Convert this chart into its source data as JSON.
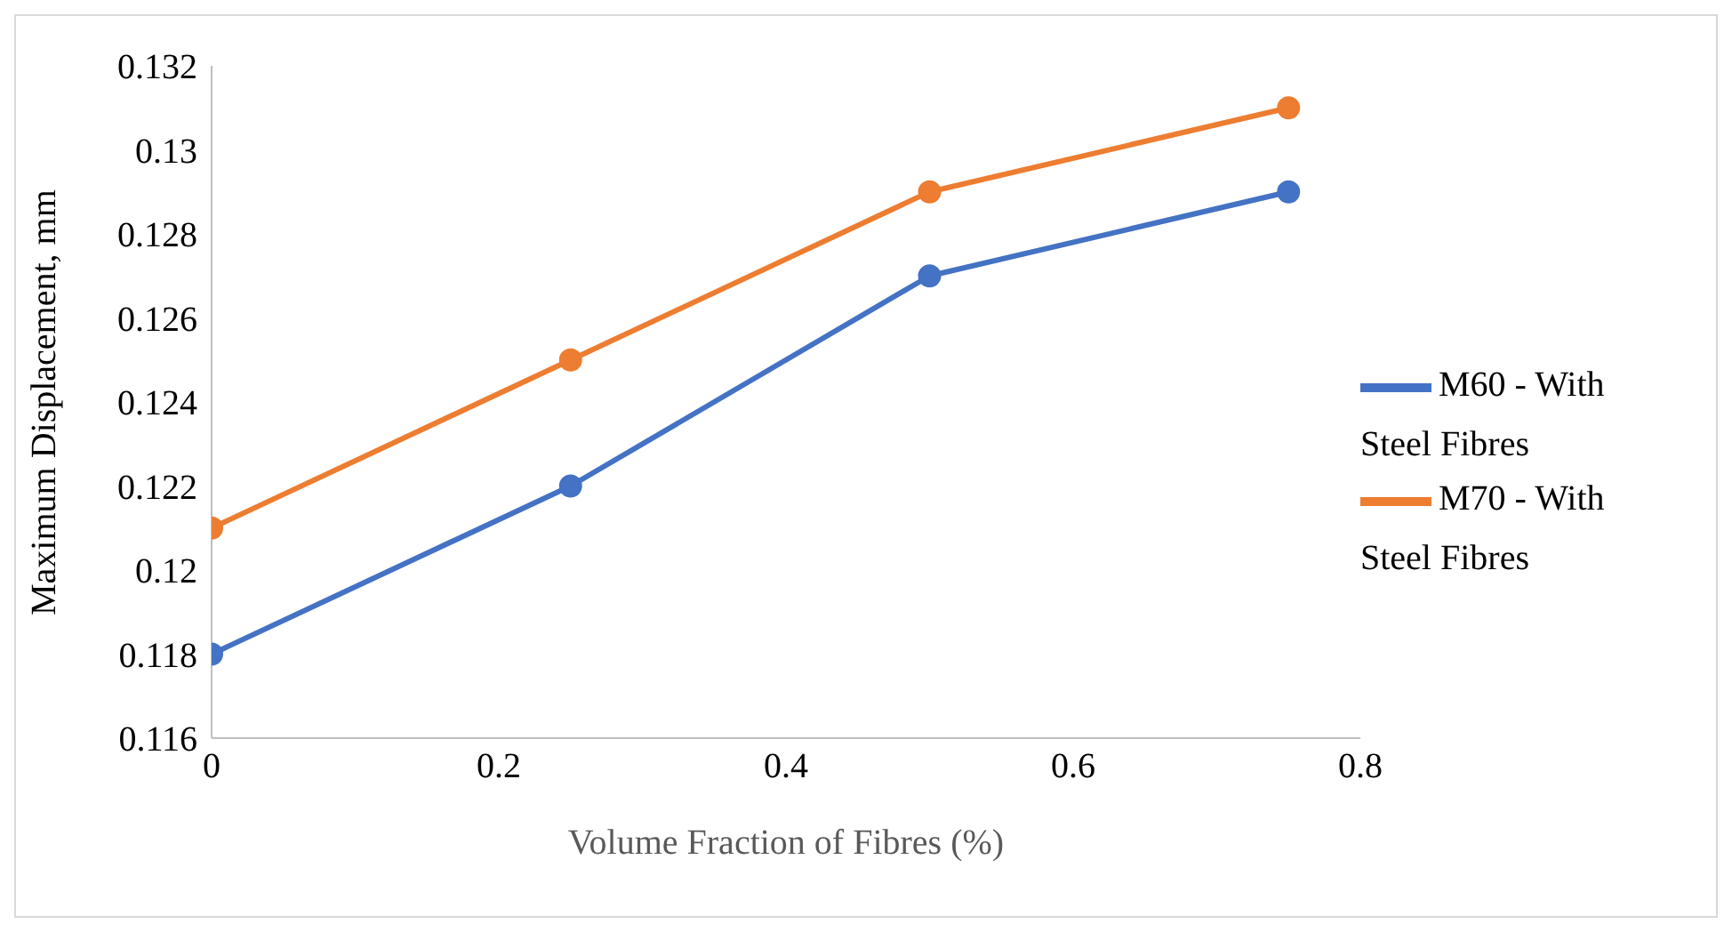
{
  "chart_data": {
    "type": "line",
    "xlabel": "Volume Fraction of Fibres (%)",
    "ylabel": "Maximum Displacement, mm",
    "x": [
      0,
      0.25,
      0.5,
      0.75
    ],
    "series": [
      {
        "name": "M60 - With Steel Fibres",
        "color": "#4472c4",
        "values": [
          0.118,
          0.122,
          0.127,
          0.129
        ]
      },
      {
        "name": "M70 - With Steel Fibres",
        "color": "#ed7d31",
        "values": [
          0.121,
          0.125,
          0.129,
          0.131
        ]
      }
    ],
    "xlim": [
      0,
      0.8
    ],
    "xticks": [
      0,
      0.2,
      0.4,
      0.6,
      0.8
    ],
    "ylim": [
      0.116,
      0.132
    ],
    "yticks": [
      0.116,
      0.118,
      0.12,
      0.122,
      0.124,
      0.126,
      0.128,
      0.13,
      0.132
    ],
    "grid": false,
    "legend": "right",
    "marker": "circle",
    "line_style": "solid"
  }
}
